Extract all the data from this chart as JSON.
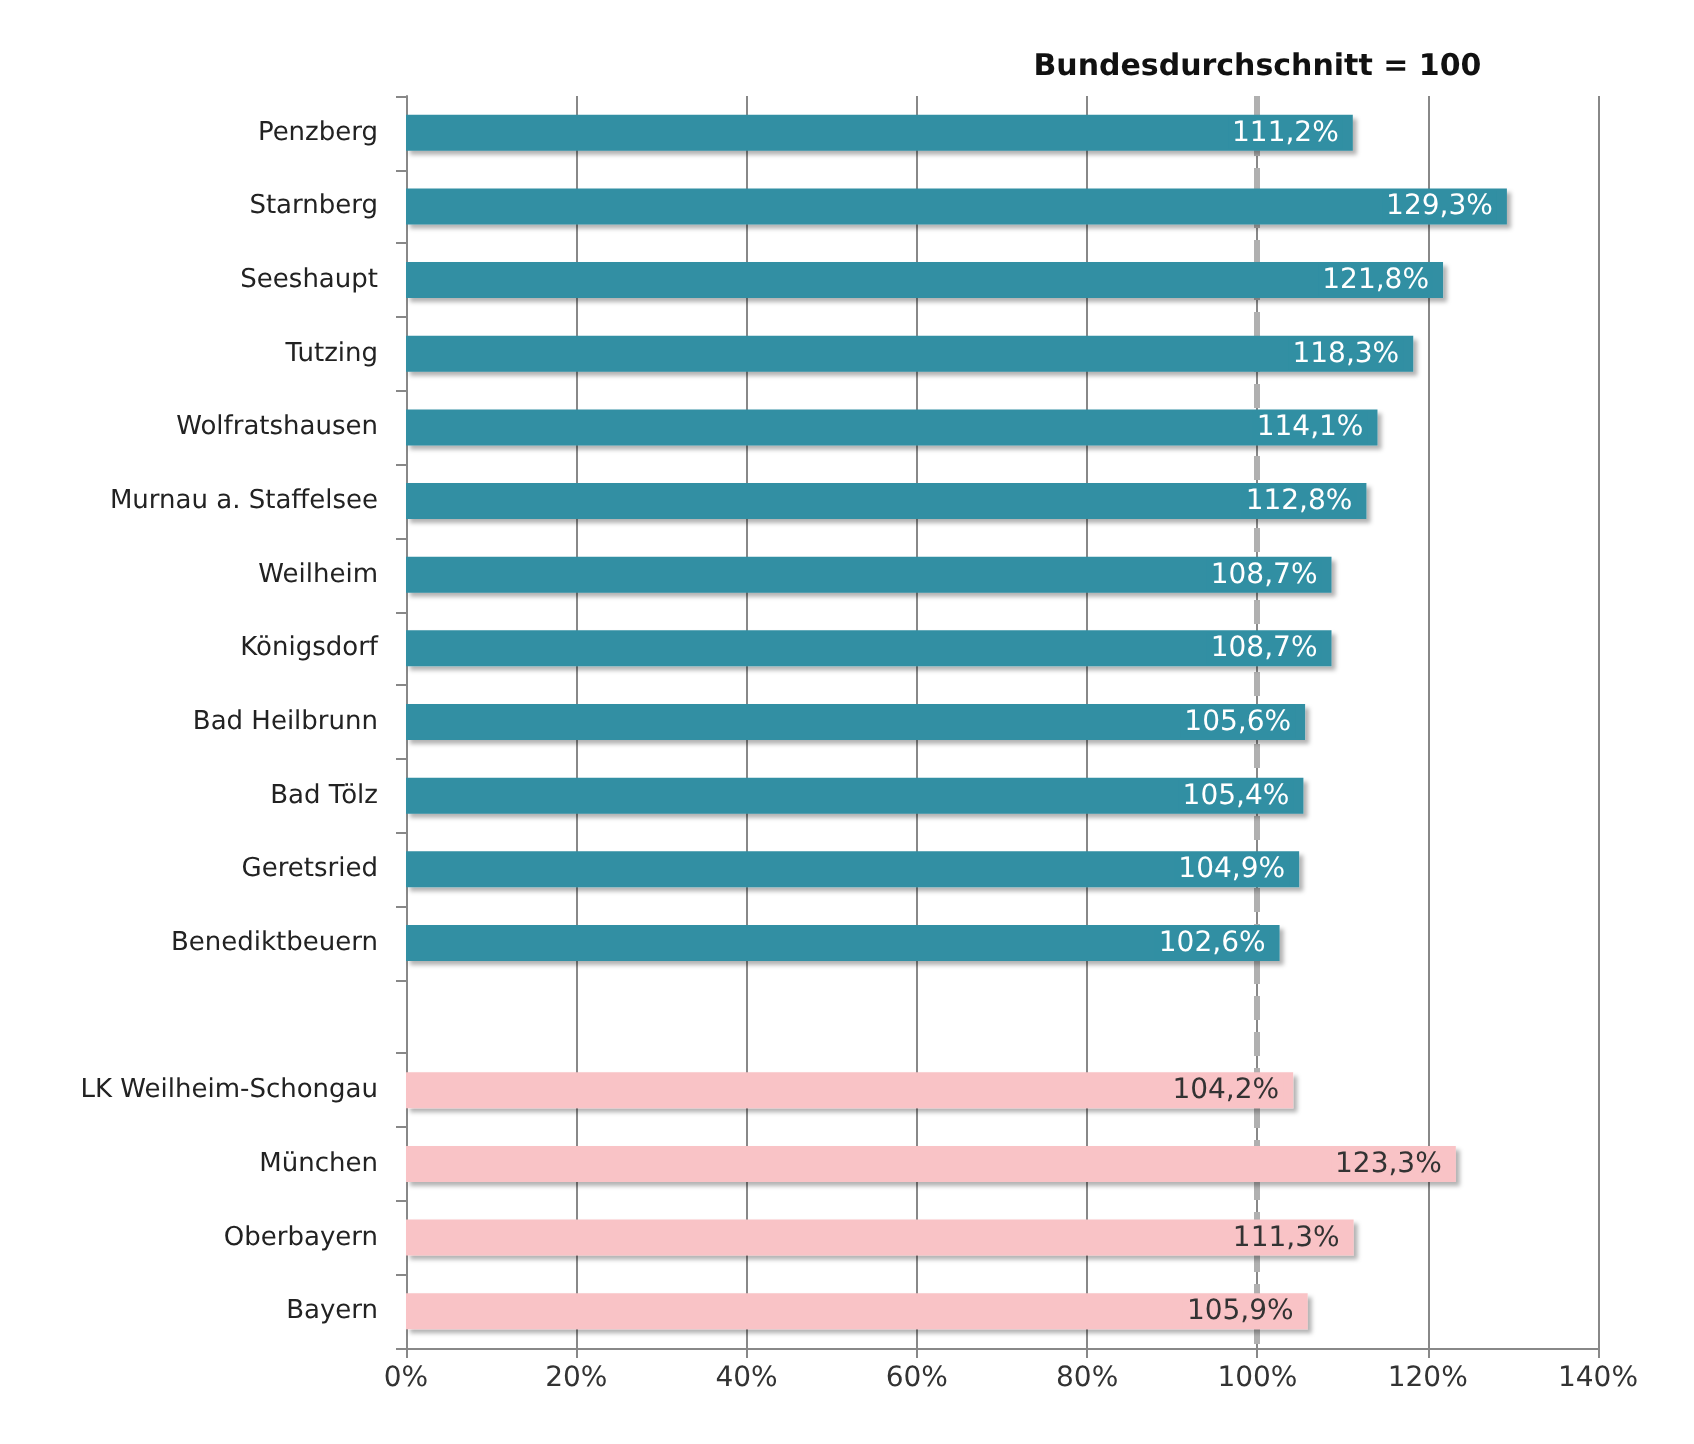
{
  "chart_data": {
    "type": "bar",
    "orientation": "horizontal",
    "categories": [
      "Penzberg",
      "Starnberg",
      "Seeshaupt",
      "Tutzing",
      "Wolfratshausen",
      "Murnau a. Staffelsee",
      "Weilheim",
      "Königsdorf",
      "Bad Heilbrunn",
      "Bad Tölz",
      "Geretsried",
      "Benediktbeuern",
      null,
      "LK Weilheim-Schongau",
      "München",
      "Oberbayern",
      "Bayern"
    ],
    "values": [
      111.2,
      129.3,
      121.8,
      118.3,
      114.1,
      112.8,
      108.7,
      108.7,
      105.6,
      105.4,
      104.9,
      102.6,
      null,
      104.2,
      123.3,
      111.3,
      105.9
    ],
    "colors": [
      "#318fa3",
      "#318fa3",
      "#318fa3",
      "#318fa3",
      "#318fa3",
      "#318fa3",
      "#318fa3",
      "#318fa3",
      "#318fa3",
      "#318fa3",
      "#318fa3",
      "#318fa3",
      "#318fa3",
      "#f9c3c6",
      "#f9c3c6",
      "#f9c3c6",
      "#f9c3c6"
    ],
    "value_labels": [
      "111,2%",
      "129,3%",
      "121,8%",
      "118,3%",
      "114,1%",
      "112,8%",
      "108,7%",
      "108,7%",
      "105,6%",
      "105,4%",
      "104,9%",
      "102,6%",
      null,
      "104,2%",
      "123,3%",
      "111,3%",
      "105,9%"
    ],
    "xlim": [
      0,
      140
    ],
    "xticks": [
      {
        "value": 0,
        "label": "0%"
      },
      {
        "value": 20,
        "label": "20%"
      },
      {
        "value": 40,
        "label": "40%"
      },
      {
        "value": 60,
        "label": "60%"
      },
      {
        "value": 80,
        "label": "80%"
      },
      {
        "value": 100,
        "label": "100%"
      },
      {
        "value": 120,
        "label": "120%"
      },
      {
        "value": 140,
        "label": "140%"
      }
    ],
    "grid": "x",
    "ref_lines": [
      {
        "axis": "x",
        "value": 100,
        "label": "Bundesdurchschnitt = 100",
        "color": "#b0b0b0",
        "line_style": "dashed"
      }
    ]
  }
}
